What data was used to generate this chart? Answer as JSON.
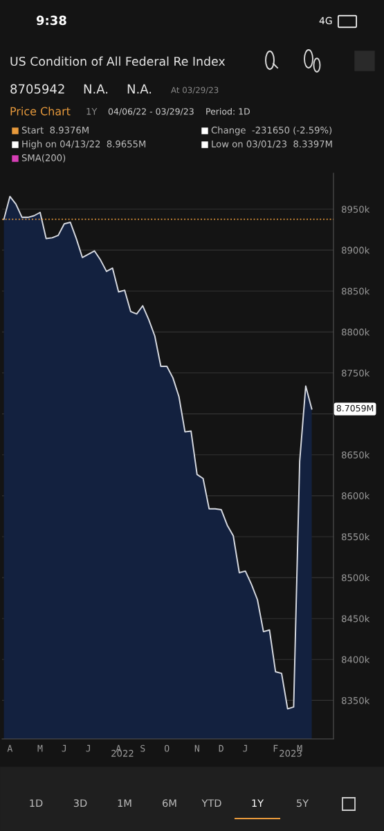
{
  "chart_data": {
    "type": "area",
    "title": "US Condition of All Federal Re Index",
    "categories": [
      null,
      "A",
      null,
      null,
      null,
      null,
      "M",
      null,
      null,
      null,
      "J",
      null,
      null,
      null,
      "J",
      null,
      null,
      null,
      null,
      "A",
      null,
      null,
      null,
      "S",
      null,
      null,
      null,
      "O",
      null,
      null,
      null,
      null,
      "N",
      null,
      null,
      null,
      "D",
      null,
      null,
      null,
      "J",
      null,
      null,
      null,
      null,
      "F",
      null,
      null,
      null,
      "M",
      null,
      null
    ],
    "series": [
      {
        "color": "#13213f",
        "values": [
          8937.6,
          8965.5,
          8956,
          8940,
          8940,
          8942,
          8946,
          8914,
          8915,
          8918,
          8932,
          8934,
          8914,
          8891,
          8895,
          8899,
          8888,
          8874,
          8878,
          8849,
          8851,
          8825,
          8822,
          8832,
          8815,
          8795,
          8758,
          8758,
          8744,
          8721,
          8678,
          8679,
          8626,
          8621,
          8584,
          8584,
          8583,
          8564,
          8551,
          8506,
          8508,
          8492,
          8473,
          8434,
          8436,
          8385,
          8383,
          8339.7,
          8342,
          8642,
          8734,
          8705.9
        ]
      }
    ],
    "ylim": [
      8303,
      8994
    ],
    "yticks": [
      {
        "value": 8350,
        "label": "8350k"
      },
      {
        "value": 8400,
        "label": "8400k"
      },
      {
        "value": 8450,
        "label": "8450k"
      },
      {
        "value": 8500,
        "label": "8500k"
      },
      {
        "value": 8550,
        "label": "8550k"
      },
      {
        "value": 8600,
        "label": "8600k"
      },
      {
        "value": 8650,
        "label": "8650k"
      },
      {
        "value": 8700,
        "label": null
      },
      {
        "value": 8750,
        "label": "8750k"
      },
      {
        "value": 8800,
        "label": "8800k"
      },
      {
        "value": 8850,
        "label": "8850k"
      },
      {
        "value": 8900,
        "label": "8900k"
      },
      {
        "value": 8950,
        "label": "8950k"
      }
    ],
    "grid": "y",
    "ref_lines": [
      {
        "axis": "y",
        "value": 8937.6,
        "color": "#e89a3c",
        "line_style": "dotted"
      }
    ],
    "annotations": [
      "9:38",
      "4G",
      "8705942",
      "N.A.",
      "N.A.",
      "At 03/29/23",
      "Price Chart",
      "1Y",
      "04/06/22 - 03/29/23",
      "Period: 1D",
      "Start  8.9376M",
      "Change  -231650 (-2.59%)",
      "High on 04/13/22  8.9655M",
      "Low on 03/01/23  8.3397M",
      "SMA(200)",
      "2022",
      "2023",
      "1D",
      "3D",
      "1M",
      "6M",
      "YTD",
      "1Y",
      "5Y",
      "8.7059M"
    ]
  }
}
